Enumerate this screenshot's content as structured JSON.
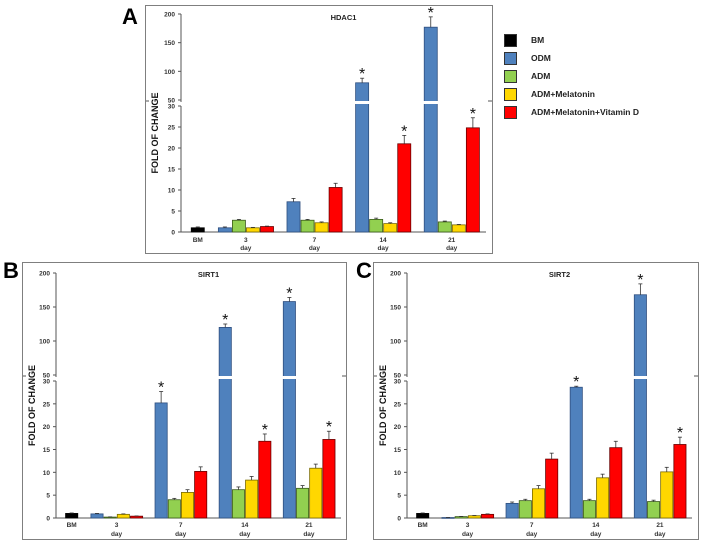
{
  "figure": {
    "panels": [
      {
        "letter": "A"
      },
      {
        "letter": "B"
      },
      {
        "letter": "C"
      }
    ],
    "legend": [
      {
        "label": "BM",
        "color": "#000000"
      },
      {
        "label": "ODM",
        "color": "#4f81bd"
      },
      {
        "label": "ADM",
        "color": "#92d050"
      },
      {
        "label": "ADM+Melatonin",
        "color": "#ffd700"
      },
      {
        "label": "ADM+Melatonin+Vitamin D",
        "color": "#ff0000"
      }
    ]
  },
  "chart_data": [
    {
      "type": "bar",
      "panel": "A",
      "title": "HDAC1",
      "ylabel": "FOLD OF CHANGE",
      "xlabel": "",
      "axis_break": {
        "lower_range": [
          0,
          30
        ],
        "upper_range": [
          50,
          200
        ]
      },
      "lower_ticks": [
        "0",
        "5",
        "10",
        "15",
        "20",
        "25",
        "30"
      ],
      "upper_ticks": [
        "50",
        "100",
        "150",
        "200"
      ],
      "categories": [
        {
          "label": "BM",
          "sub": ""
        },
        {
          "label": "3",
          "sub": "day"
        },
        {
          "label": "7",
          "sub": "day"
        },
        {
          "label": "14",
          "sub": "day"
        },
        {
          "label": "21",
          "sub": "day"
        }
      ],
      "series": [
        {
          "name": "BM",
          "values": [
            1,
            null,
            null,
            null,
            null
          ],
          "errors": [
            0.2,
            null,
            null,
            null,
            null
          ],
          "sig": [
            false,
            false,
            false,
            false,
            false
          ]
        },
        {
          "name": "ODM",
          "values": [
            null,
            1,
            7.2,
            80,
            177
          ],
          "errors": [
            null,
            0.2,
            0.8,
            8,
            18
          ],
          "sig": [
            false,
            false,
            false,
            true,
            true
          ]
        },
        {
          "name": "ADM",
          "values": [
            null,
            2.8,
            2.8,
            3.0,
            2.4
          ],
          "errors": [
            null,
            0.2,
            0.2,
            0.3,
            0.2
          ],
          "sig": [
            false,
            false,
            false,
            false,
            false
          ]
        },
        {
          "name": "ADM+Melatonin",
          "values": [
            null,
            1.0,
            2.2,
            2.0,
            1.7
          ],
          "errors": [
            null,
            0.1,
            0.2,
            0.2,
            0.1
          ],
          "sig": [
            false,
            false,
            false,
            false,
            false
          ]
        },
        {
          "name": "ADM+Melatonin+Vitamin D",
          "values": [
            null,
            1.3,
            10.6,
            21,
            24.8
          ],
          "errors": [
            null,
            0.1,
            1.0,
            2.0,
            2.4
          ],
          "sig": [
            false,
            false,
            false,
            true,
            true
          ]
        }
      ]
    },
    {
      "type": "bar",
      "panel": "B",
      "title": "SIRT1",
      "ylabel": "FOLD OF CHANGE",
      "xlabel": "",
      "axis_break": {
        "lower_range": [
          0,
          30
        ],
        "upper_range": [
          50,
          200
        ]
      },
      "lower_ticks": [
        "0",
        "5",
        "10",
        "15",
        "20",
        "25",
        "30"
      ],
      "upper_ticks": [
        "50",
        "100",
        "150",
        "200"
      ],
      "categories": [
        {
          "label": "BM",
          "sub": ""
        },
        {
          "label": "3",
          "sub": "day"
        },
        {
          "label": "7",
          "sub": "day"
        },
        {
          "label": "14",
          "sub": "day"
        },
        {
          "label": "21",
          "sub": "day"
        }
      ],
      "series": [
        {
          "name": "BM",
          "values": [
            1,
            null,
            null,
            null,
            null
          ],
          "errors": [
            0.1,
            null,
            null,
            null,
            null
          ],
          "sig": [
            false,
            false,
            false,
            false,
            false
          ]
        },
        {
          "name": "ODM",
          "values": [
            null,
            0.9,
            25.2,
            120,
            158
          ],
          "errors": [
            null,
            0.1,
            2.5,
            5,
            6
          ],
          "sig": [
            false,
            false,
            true,
            true,
            true
          ]
        },
        {
          "name": "ADM",
          "values": [
            null,
            0.2,
            4.0,
            6.2,
            6.5
          ],
          "errors": [
            null,
            0.05,
            0.3,
            0.6,
            0.6
          ],
          "sig": [
            false,
            false,
            false,
            false,
            false
          ]
        },
        {
          "name": "ADM+Melatonin",
          "values": [
            null,
            0.8,
            5.6,
            8.3,
            10.9
          ],
          "errors": [
            null,
            0.1,
            0.6,
            0.8,
            0.9
          ],
          "sig": [
            false,
            false,
            false,
            false,
            false
          ]
        },
        {
          "name": "ADM+Melatonin+Vitamin D",
          "values": [
            null,
            0.4,
            10.2,
            16.8,
            17.2
          ],
          "errors": [
            null,
            0.05,
            1.0,
            1.6,
            1.8
          ],
          "sig": [
            false,
            false,
            false,
            true,
            true
          ]
        }
      ]
    },
    {
      "type": "bar",
      "panel": "C",
      "title": "SIRT2",
      "ylabel": "FOLD OF CHANGE",
      "xlabel": "",
      "axis_break": {
        "lower_range": [
          0,
          30
        ],
        "upper_range": [
          50,
          200
        ]
      },
      "lower_ticks": [
        "0",
        "5",
        "10",
        "15",
        "20",
        "25",
        "30"
      ],
      "upper_ticks": [
        "50",
        "100",
        "150",
        "200"
      ],
      "categories": [
        {
          "label": "BM",
          "sub": ""
        },
        {
          "label": "3",
          "sub": "day"
        },
        {
          "label": "7",
          "sub": "day"
        },
        {
          "label": "14",
          "sub": "day"
        },
        {
          "label": "21",
          "sub": "day"
        }
      ],
      "series": [
        {
          "name": "BM",
          "values": [
            1,
            null,
            null,
            null,
            null
          ],
          "errors": [
            0.1,
            null,
            null,
            null,
            null
          ],
          "sig": [
            false,
            false,
            false,
            false,
            false
          ]
        },
        {
          "name": "ODM",
          "values": [
            null,
            0.1,
            3.2,
            32,
            168
          ],
          "errors": [
            null,
            0.02,
            0.3,
            1.5,
            16
          ],
          "sig": [
            false,
            false,
            false,
            true,
            true
          ]
        },
        {
          "name": "ADM",
          "values": [
            null,
            0.3,
            3.8,
            3.8,
            3.6
          ],
          "errors": [
            null,
            0.05,
            0.3,
            0.3,
            0.3
          ],
          "sig": [
            false,
            false,
            false,
            false,
            false
          ]
        },
        {
          "name": "ADM+Melatonin",
          "values": [
            null,
            0.5,
            6.4,
            8.8,
            10.1
          ],
          "errors": [
            null,
            0.05,
            0.7,
            0.8,
            1.0
          ],
          "sig": [
            false,
            false,
            false,
            false,
            false
          ]
        },
        {
          "name": "ADM+Melatonin+Vitamin D",
          "values": [
            null,
            0.8,
            12.9,
            15.4,
            16.1
          ],
          "errors": [
            null,
            0.1,
            1.3,
            1.4,
            1.6
          ],
          "sig": [
            false,
            false,
            false,
            false,
            true
          ]
        }
      ]
    }
  ]
}
